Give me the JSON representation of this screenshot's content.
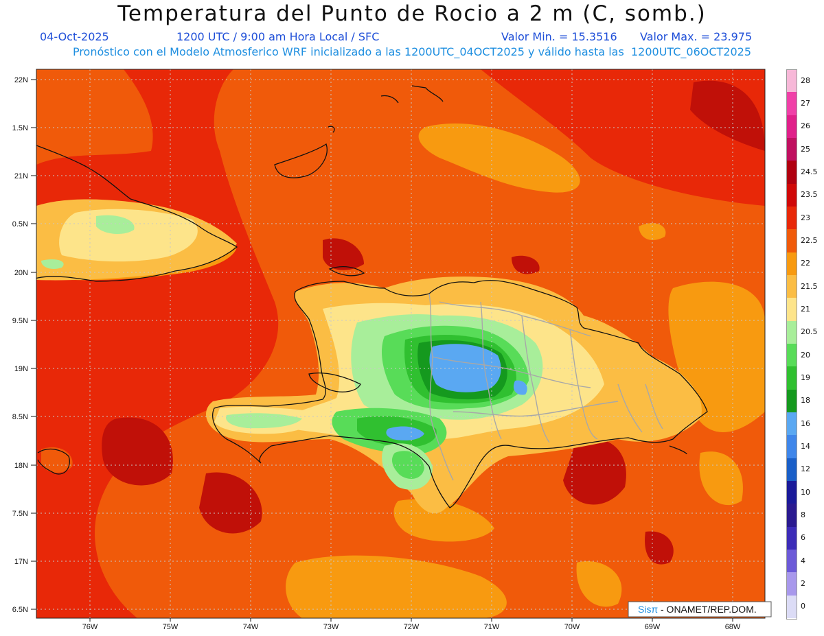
{
  "header": {
    "title": "Temperatura del Punto de Rocio a 2 m (C, somb.)",
    "date": "04-Oct-2025",
    "time": "1200 UTC / 9:00 am Hora Local / SFC",
    "vmin": "Valor Min. = 15.3516",
    "vmax": "Valor Max. = 23.975",
    "model": "Pronóstico con el Modelo Atmosferico WRF inicializado a las 1200UTC_04OCT2025 y válido hasta las  1200UTC_06OCT2025"
  },
  "axes": {
    "lat_labels": [
      "22N",
      "1.5N",
      "21N",
      "0.5N",
      "20N",
      "9.5N",
      "19N",
      "8.5N",
      "18N",
      "7.5N",
      "17N",
      "6.5N"
    ],
    "lon_labels": [
      "76W",
      "75W",
      "74W",
      "73W",
      "72W",
      "71W",
      "70W",
      "69W",
      "68W"
    ]
  },
  "colorbar": {
    "labels": [
      "28",
      "27",
      "26",
      "25",
      "24.5",
      "23.5",
      "23",
      "22.5",
      "22",
      "21.5",
      "21",
      "20.5",
      "20",
      "19",
      "18",
      "16",
      "14",
      "12",
      "10",
      "8",
      "6",
      "4",
      "2",
      "0"
    ],
    "colors": [
      "#f7b8d8",
      "#f040a8",
      "#e0208a",
      "#c01060",
      "#b00010",
      "#d00808",
      "#e82808",
      "#f05a0a",
      "#f89a10",
      "#fbbd44",
      "#fde48a",
      "#a8ee9a",
      "#58dc58",
      "#30c030",
      "#15991e",
      "#5aa8f2",
      "#3f86ea",
      "#1a5fc8",
      "#1a1a9a",
      "#2a1a90",
      "#3c2cb8",
      "#6c5ad8",
      "#a898ec",
      "#dcdcf6"
    ]
  },
  "credit": {
    "brand": "Sisπ",
    "text": " - ONAMET/REP.DOM."
  }
}
